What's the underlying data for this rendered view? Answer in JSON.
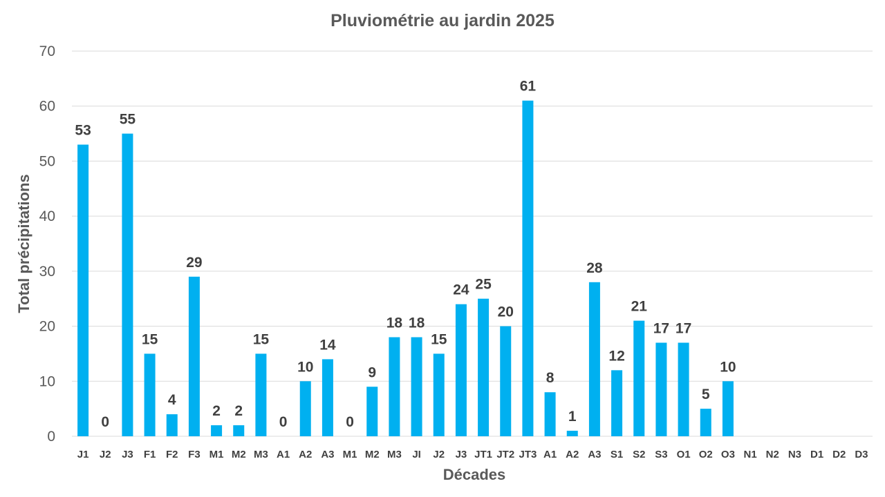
{
  "chart_data": {
    "type": "bar",
    "title": "Pluviométrie au jardin 2025",
    "xlabel": "Décades",
    "ylabel": "Total précipitations",
    "ylim": [
      0,
      70
    ],
    "yticks": [
      0,
      10,
      20,
      30,
      40,
      50,
      60,
      70
    ],
    "grid": true,
    "legend": "none",
    "bar_color": "#00b0f0",
    "categories": [
      "J1",
      "J2",
      "J3",
      "F1",
      "F2",
      "F3",
      "M1",
      "M2",
      "M3",
      "A1",
      "A2",
      "A3",
      "M1",
      "M2",
      "M3",
      "JI",
      "J2",
      "J3",
      "JT1",
      "JT2",
      "JT3",
      "A1",
      "A2",
      "A3",
      "S1",
      "S2",
      "S3",
      "O1",
      "O2",
      "O3",
      "N1",
      "N2",
      "N3",
      "D1",
      "D2",
      "D3"
    ],
    "values": [
      53,
      0,
      55,
      15,
      4,
      29,
      2,
      2,
      15,
      0,
      10,
      14,
      0,
      9,
      18,
      18,
      15,
      24,
      25,
      20,
      61,
      8,
      1,
      28,
      12,
      21,
      17,
      17,
      5,
      10,
      null,
      null,
      null,
      null,
      null,
      null
    ]
  }
}
